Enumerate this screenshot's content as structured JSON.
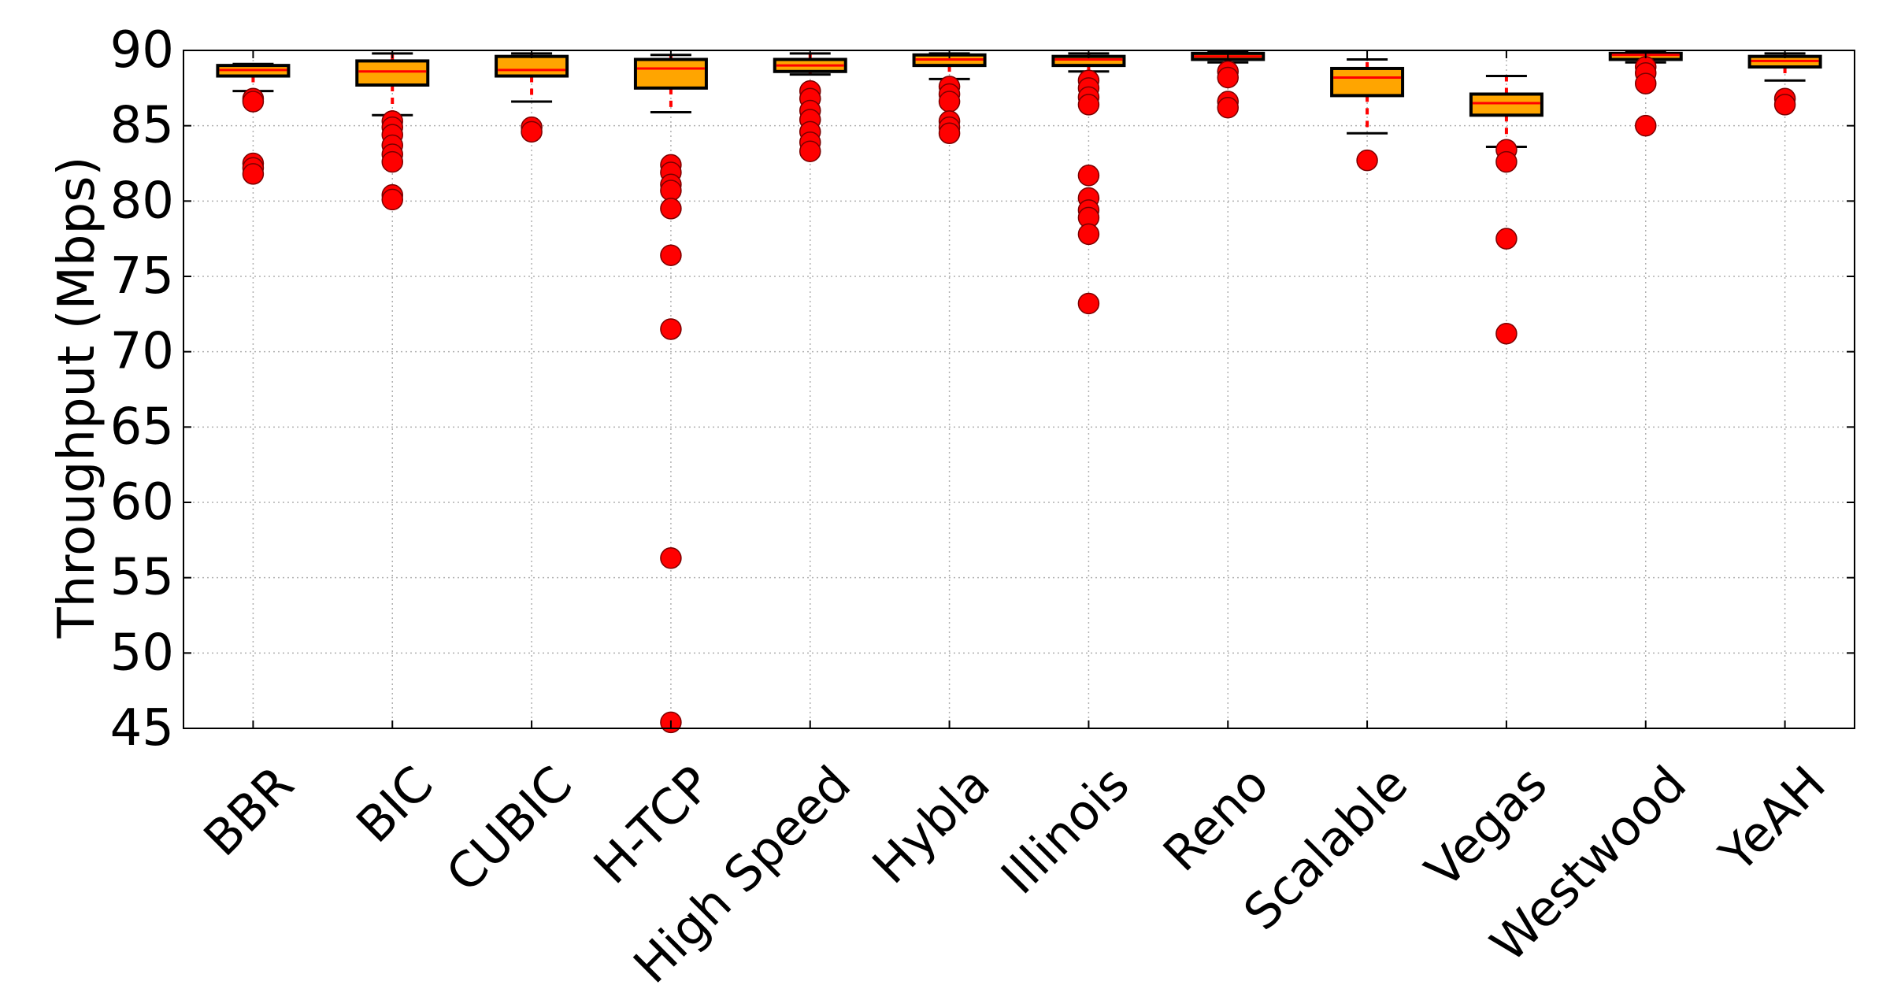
{
  "chart_data": {
    "type": "box",
    "title": "",
    "xlabel": "",
    "ylabel": "Throughput (Mbps)",
    "ylim": [
      45,
      90
    ],
    "yticks": [
      45,
      50,
      55,
      60,
      65,
      70,
      75,
      80,
      85,
      90
    ],
    "grid": true,
    "colors": {
      "box_fill": "#FFA500",
      "median": "#FF0000",
      "whisker": "#FF0000",
      "outlier": "#FF0000",
      "grid": "#b0b0b0"
    },
    "categories": [
      "BBR",
      "BIC",
      "CUBIC",
      "H-TCP",
      "High Speed",
      "Hybla",
      "Illinois",
      "Reno",
      "Scalable",
      "Vegas",
      "Westwood",
      "YeAH"
    ],
    "boxes": [
      {
        "label": "BBR",
        "whisker_low": 87.3,
        "q1": 88.3,
        "median": 88.7,
        "q3": 89.0,
        "whisker_high": 89.1,
        "outliers": [
          86.8,
          86.6,
          82.5,
          82.2,
          81.8
        ]
      },
      {
        "label": "BIC",
        "whisker_low": 85.7,
        "q1": 87.7,
        "median": 88.6,
        "q3": 89.3,
        "whisker_high": 89.8,
        "outliers": [
          85.3,
          84.9,
          84.4,
          83.7,
          83.1,
          82.6,
          80.4,
          80.1
        ]
      },
      {
        "label": "CUBIC",
        "whisker_low": 86.6,
        "q1": 88.3,
        "median": 88.7,
        "q3": 89.6,
        "whisker_high": 89.8,
        "outliers": [
          84.9,
          84.6
        ]
      },
      {
        "label": "H-TCP",
        "whisker_low": 85.9,
        "q1": 87.5,
        "median": 88.8,
        "q3": 89.4,
        "whisker_high": 89.7,
        "outliers": [
          82.4,
          81.9,
          81.1,
          80.7,
          79.5,
          76.4,
          71.5,
          56.3,
          45.4
        ]
      },
      {
        "label": "High Speed",
        "whisker_low": 88.4,
        "q1": 88.6,
        "median": 89.0,
        "q3": 89.4,
        "whisker_high": 89.8,
        "outliers": [
          87.3,
          86.8,
          86.0,
          85.4,
          84.6,
          83.9,
          83.3
        ]
      },
      {
        "label": "Hybla",
        "whisker_low": 88.1,
        "q1": 89.0,
        "median": 89.4,
        "q3": 89.7,
        "whisker_high": 89.8,
        "outliers": [
          87.6,
          87.1,
          86.6,
          85.3,
          84.9,
          84.5
        ]
      },
      {
        "label": "Illinois",
        "whisker_low": 88.6,
        "q1": 89.0,
        "median": 89.4,
        "q3": 89.6,
        "whisker_high": 89.8,
        "outliers": [
          88.0,
          87.5,
          86.9,
          86.4,
          81.7,
          80.2,
          79.4,
          78.9,
          77.8,
          73.2
        ]
      },
      {
        "label": "Reno",
        "whisker_low": 89.2,
        "q1": 89.4,
        "median": 89.6,
        "q3": 89.8,
        "whisker_high": 89.9,
        "outliers": [
          88.6,
          88.2,
          86.6,
          86.2
        ]
      },
      {
        "label": "Scalable",
        "whisker_low": 84.5,
        "q1": 87.0,
        "median": 88.2,
        "q3": 88.8,
        "whisker_high": 89.4,
        "outliers": [
          82.7
        ]
      },
      {
        "label": "Vegas",
        "whisker_low": 83.6,
        "q1": 85.7,
        "median": 86.5,
        "q3": 87.1,
        "whisker_high": 88.3,
        "outliers": [
          83.4,
          82.6,
          77.5,
          71.2
        ]
      },
      {
        "label": "Westwood",
        "whisker_low": 89.2,
        "q1": 89.4,
        "median": 89.7,
        "q3": 89.8,
        "whisker_high": 89.9,
        "outliers": [
          88.9,
          88.5,
          87.8,
          85.0
        ]
      },
      {
        "label": "YeAH",
        "whisker_low": 88.0,
        "q1": 88.9,
        "median": 89.3,
        "q3": 89.6,
        "whisker_high": 89.8,
        "outliers": [
          86.8,
          86.4
        ]
      }
    ]
  }
}
